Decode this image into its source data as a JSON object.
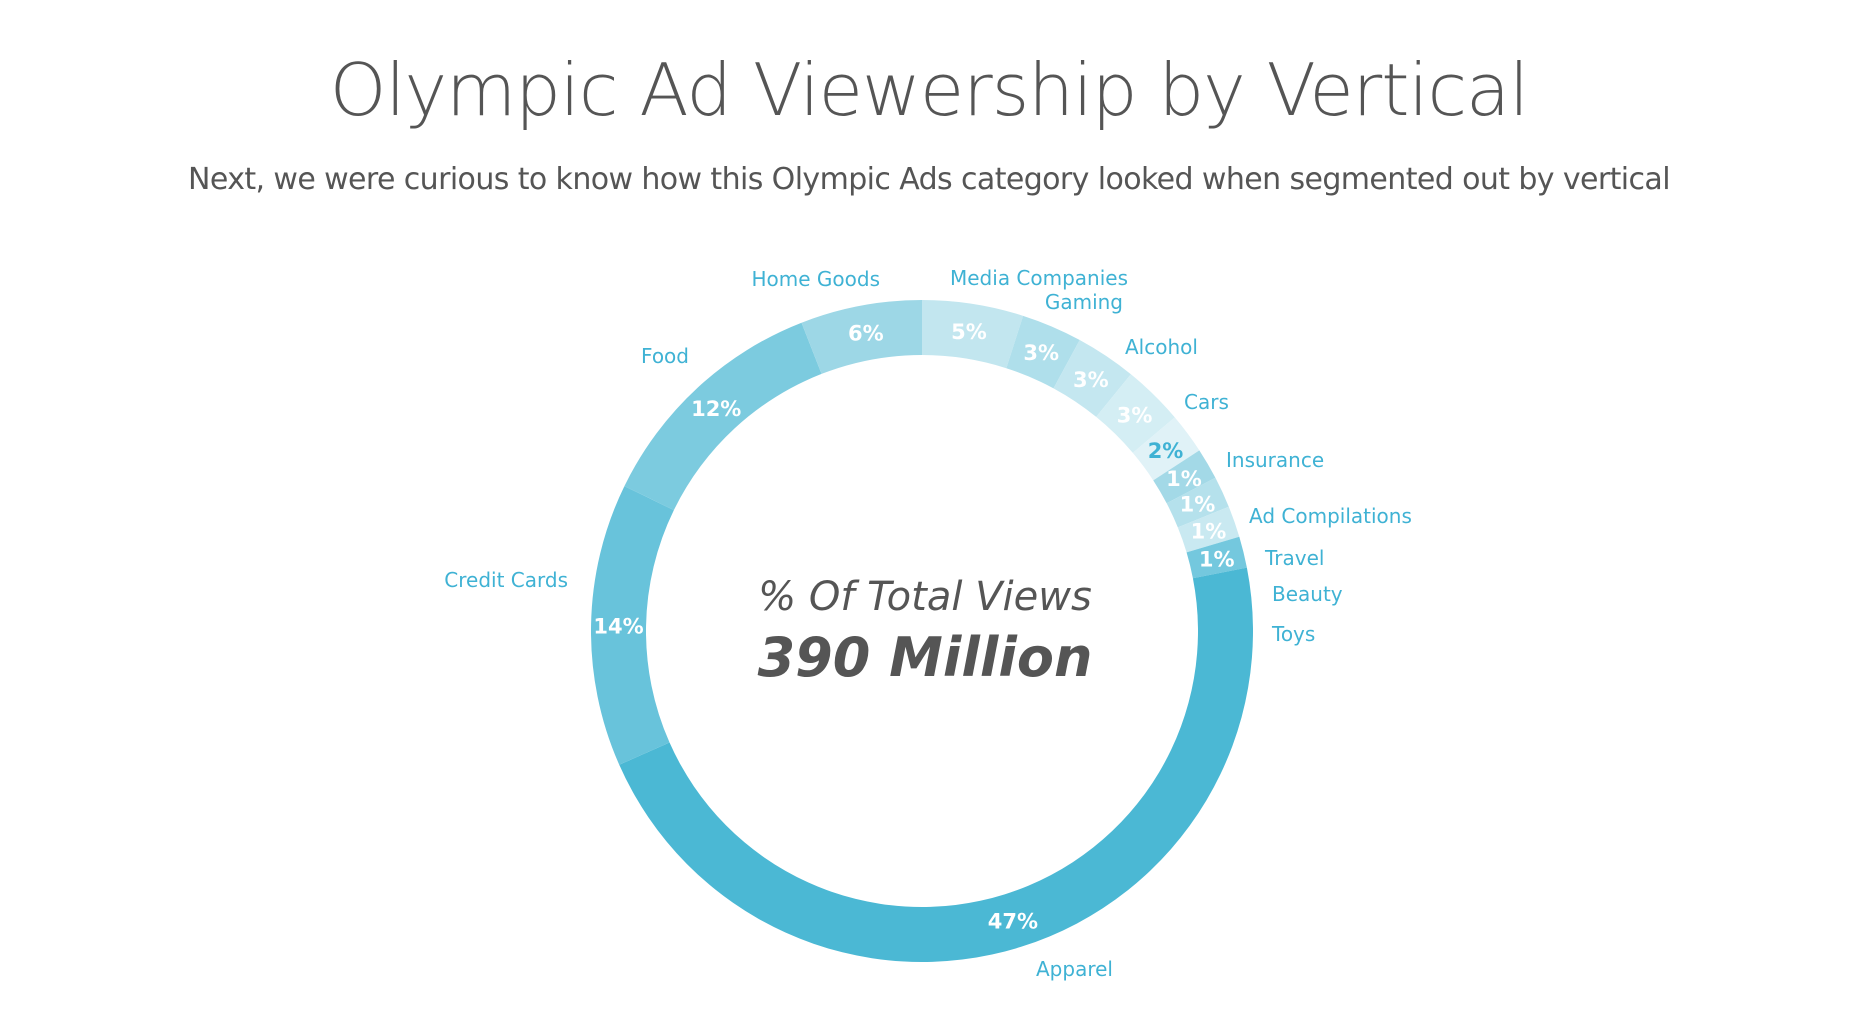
{
  "header": {
    "title": "Olympic Ad Viewership by Vertical",
    "subtitle": "Next, we were curious to know how this Olympic Ads category looked when segmented out by vertical"
  },
  "chart_data": {
    "type": "pie",
    "variant": "donut",
    "title": "Olympic Ad Viewership by Vertical",
    "center_label": "% Of Total Views",
    "center_value": "390 Million",
    "unit": "%",
    "slices": [
      {
        "label": "Media Companies",
        "value": 5,
        "pct_label": "5%",
        "color": "#c2e6ef"
      },
      {
        "label": "Gaming",
        "value": 3,
        "pct_label": "3%",
        "color": "#afdfeb"
      },
      {
        "label": "Alcohol",
        "value": 3,
        "pct_label": "3%",
        "color": "#c4e7f0"
      },
      {
        "label": "Cars",
        "value": 3,
        "pct_label": "3%",
        "color": "#d4eef4"
      },
      {
        "label": "Insurance",
        "value": 2,
        "pct_label": "2%",
        "color": "#e0f2f7"
      },
      {
        "label": "Ad Compilations",
        "value": 1,
        "pct_label": "1%",
        "color": "#a3d9e7"
      },
      {
        "label": "Travel",
        "value": 1,
        "pct_label": "1%",
        "color": "#b5e1ec"
      },
      {
        "label": "Beauty",
        "value": 1,
        "pct_label": "1%",
        "color": "#c9e9f1"
      },
      {
        "label": "Toys",
        "value": 1,
        "pct_label": "1%",
        "color": "#74c8de"
      },
      {
        "label": "Apparel",
        "value": 47,
        "pct_label": "47%",
        "color": "#4bb8d4"
      },
      {
        "label": "Credit Cards",
        "value": 14,
        "pct_label": "14%",
        "color": "#68c3db"
      },
      {
        "label": "Food",
        "value": 12,
        "pct_label": "12%",
        "color": "#7ccbdf"
      },
      {
        "label": "Home Goods",
        "value": 6,
        "pct_label": "6%",
        "color": "#9dd7e6"
      }
    ],
    "label_color": "#3fb2d4"
  }
}
